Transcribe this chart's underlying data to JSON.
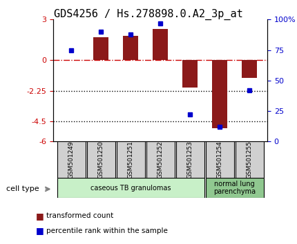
{
  "title": "GDS4256 / Hs.278898.0.A2_3p_at",
  "samples": [
    "GSM501249",
    "GSM501250",
    "GSM501251",
    "GSM501252",
    "GSM501253",
    "GSM501254",
    "GSM501255"
  ],
  "bar_values": [
    0.0,
    1.7,
    1.8,
    2.3,
    -2.0,
    -5.0,
    -1.3
  ],
  "dot_values": [
    75,
    90,
    88,
    97,
    22,
    12,
    42
  ],
  "ylim": [
    -6,
    3
  ],
  "yticks_left": [
    -6,
    -4.5,
    -2.25,
    0,
    3
  ],
  "ytick_labels_left": [
    "-6",
    "-4.5",
    "-2.25",
    "0",
    "3"
  ],
  "yticks_right": [
    0,
    25,
    50,
    75,
    100
  ],
  "ytick_labels_right": [
    "0",
    "25",
    "50",
    "75",
    "100%"
  ],
  "hline_dash": 0.0,
  "hline_dot1": -2.25,
  "hline_dot2": -4.5,
  "bar_color": "#8B1A1A",
  "dot_color": "#0000CC",
  "background_color": "#ffffff",
  "groups": [
    {
      "label": "caseous TB granulomas",
      "samples": [
        0,
        1,
        2,
        3,
        4
      ],
      "color": "#c8f0c8"
    },
    {
      "label": "normal lung\nparenchyma",
      "samples": [
        5,
        6
      ],
      "color": "#90c890"
    }
  ],
  "cell_type_label": "cell type",
  "legend_bar_label": "transformed count",
  "legend_dot_label": "percentile rank within the sample",
  "title_fontsize": 11,
  "label_fontsize": 8,
  "tick_fontsize": 8
}
